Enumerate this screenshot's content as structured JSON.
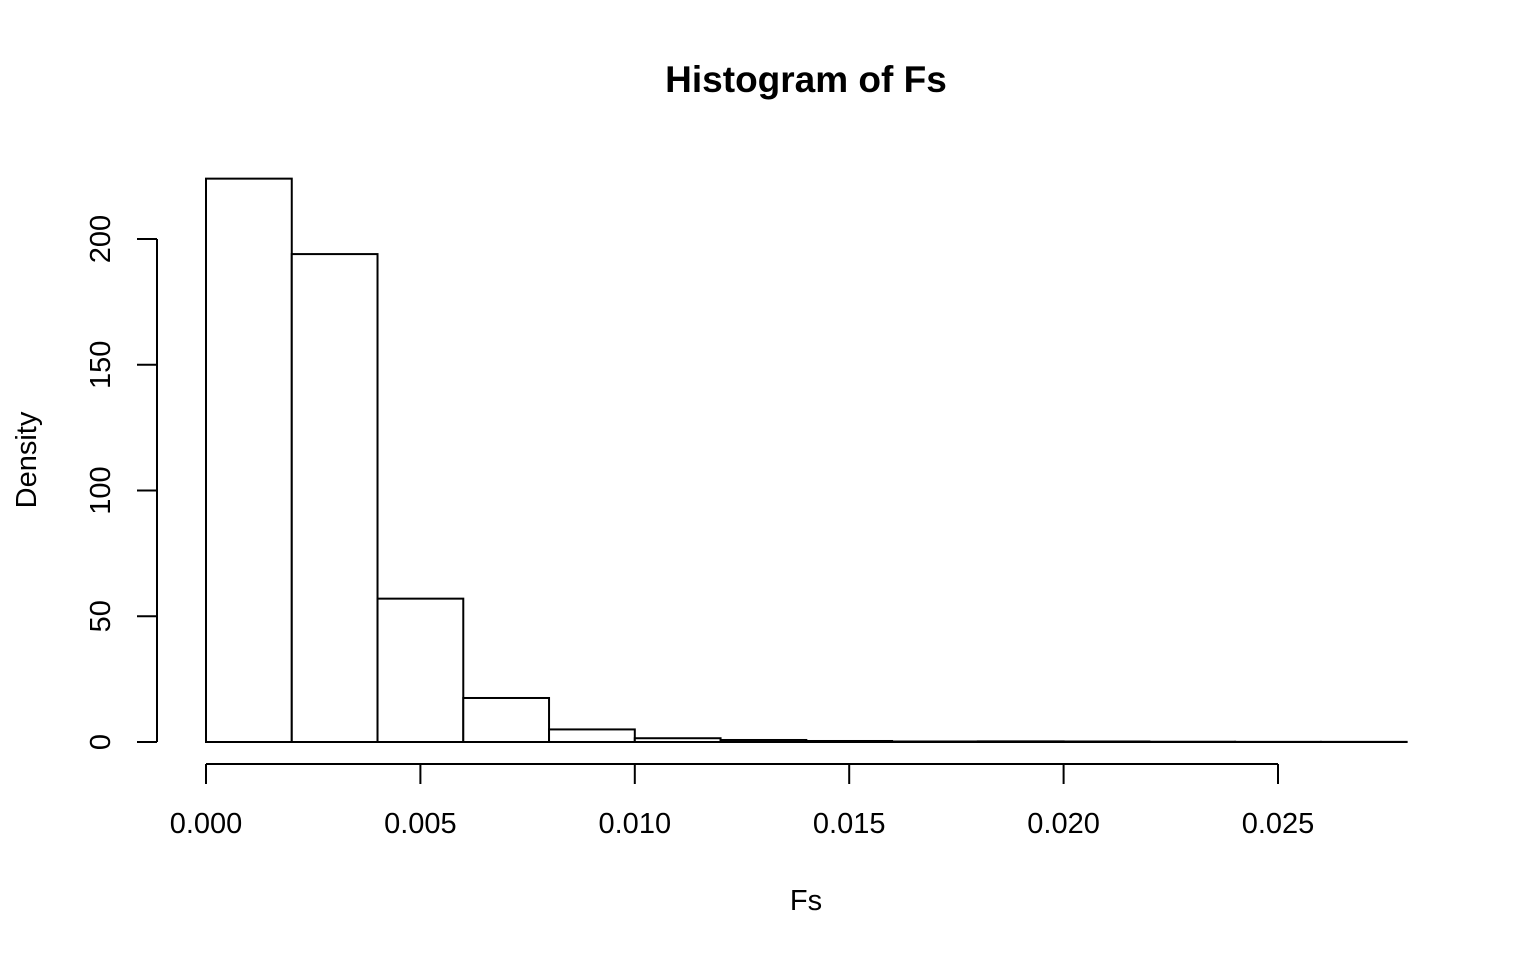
{
  "chart_data": {
    "type": "bar",
    "title": "Histogram of Fs",
    "xlabel": "Fs",
    "ylabel": "Density",
    "bin_edges": [
      0.0,
      0.002,
      0.004,
      0.006,
      0.008,
      0.01,
      0.012,
      0.014,
      0.016,
      0.018,
      0.02,
      0.022,
      0.024,
      0.026,
      0.028
    ],
    "values": [
      224,
      194,
      57,
      17.5,
      5,
      1.5,
      0.8,
      0.4,
      0.2,
      0.25,
      0.2,
      0.1,
      0.05,
      0.05
    ],
    "xlim": [
      0.0,
      0.028
    ],
    "ylim": [
      0,
      224
    ],
    "x_ticks": [
      0.0,
      0.005,
      0.01,
      0.015,
      0.02,
      0.025
    ],
    "x_tick_labels": [
      "0.000",
      "0.005",
      "0.010",
      "0.015",
      "0.020",
      "0.025"
    ],
    "y_ticks": [
      0,
      50,
      100,
      150,
      200
    ],
    "y_tick_labels": [
      "0",
      "50",
      "100",
      "150",
      "200"
    ],
    "grid": false,
    "bar_fill": "#ffffff",
    "bar_stroke": "#000000"
  }
}
